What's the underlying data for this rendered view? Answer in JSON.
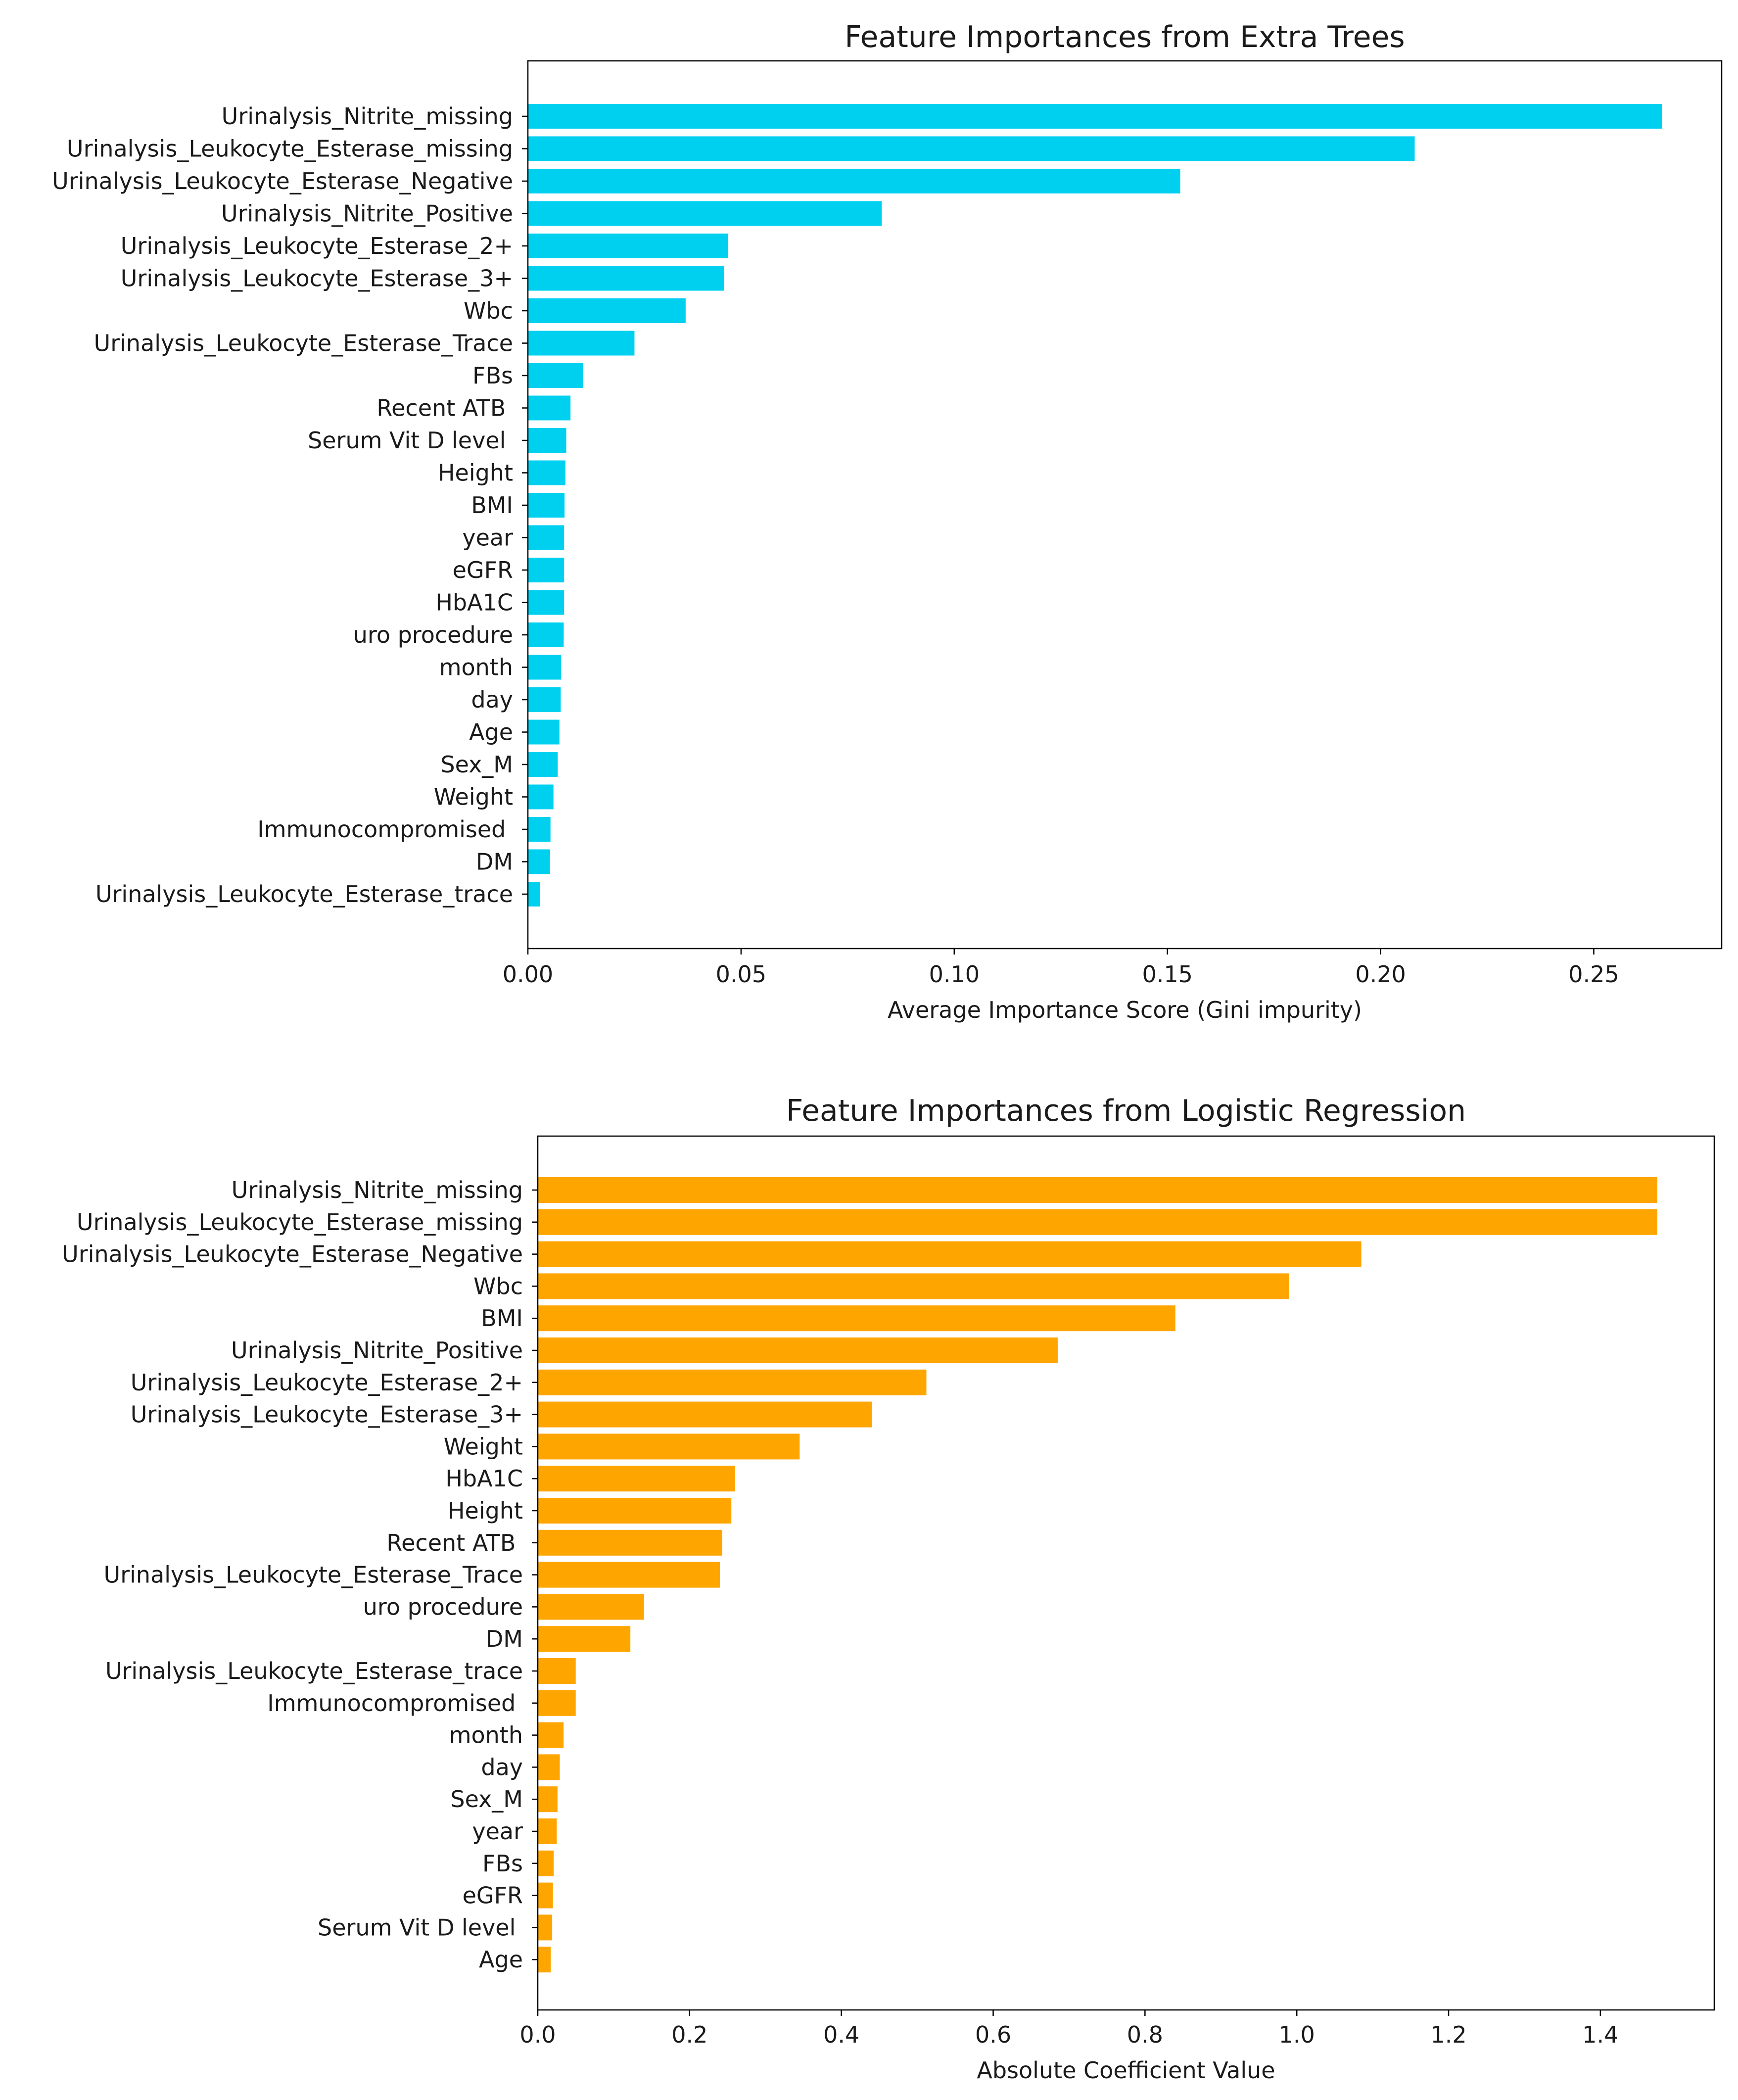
{
  "chart_data": [
    {
      "type": "bar",
      "orientation": "horizontal",
      "title": "Feature Importances from Extra Trees",
      "xlabel": "Average Importance Score (Gini impurity)",
      "ylabel": "",
      "xlim": [
        0,
        0.28
      ],
      "xticks": [
        0,
        0.05,
        0.1,
        0.15,
        0.2,
        0.25
      ],
      "xtick_labels": [
        "0.00",
        "0.05",
        "0.10",
        "0.15",
        "0.20",
        "0.25"
      ],
      "color": "#00D0F0",
      "grid": false,
      "categories": [
        "Urinalysis_Nitrite_missing",
        "Urinalysis_Leukocyte_Esterase_missing",
        "Urinalysis_Leukocyte_Esterase_Negative",
        "Urinalysis_Nitrite_Positive",
        "Urinalysis_Leukocyte_Esterase_2+",
        "Urinalysis_Leukocyte_Esterase_3+",
        "Wbc",
        "Urinalysis_Leukocyte_Esterase_Trace",
        "FBs",
        "Recent ATB ",
        "Serum Vit D level ",
        "Height",
        "BMI",
        "year",
        "eGFR",
        "HbA1C",
        "uro procedure",
        "month",
        "day",
        "Age",
        "Sex_M",
        "Weight",
        "Immunocompromised ",
        "DM",
        "Urinalysis_Leukocyte_Esterase_trace"
      ],
      "values": [
        0.266,
        0.208,
        0.153,
        0.083,
        0.047,
        0.046,
        0.037,
        0.025,
        0.013,
        0.01,
        0.009,
        0.0088,
        0.0086,
        0.0085,
        0.0085,
        0.0085,
        0.0084,
        0.0078,
        0.0077,
        0.0074,
        0.007,
        0.006,
        0.0053,
        0.0052,
        0.0028
      ]
    },
    {
      "type": "bar",
      "orientation": "horizontal",
      "title": "Feature Importances from Logistic Regression",
      "xlabel": "Absolute Coefficient Value",
      "ylabel": "",
      "xlim": [
        0,
        1.55
      ],
      "xticks": [
        0,
        0.2,
        0.4,
        0.6,
        0.8,
        1.0,
        1.2,
        1.4
      ],
      "xtick_labels": [
        "0.0",
        "0.2",
        "0.4",
        "0.6",
        "0.8",
        "1.0",
        "1.2",
        "1.4"
      ],
      "color": "#FFA500",
      "grid": false,
      "categories": [
        "Urinalysis_Nitrite_missing",
        "Urinalysis_Leukocyte_Esterase_missing",
        "Urinalysis_Leukocyte_Esterase_Negative",
        "Wbc",
        "BMI",
        "Urinalysis_Nitrite_Positive",
        "Urinalysis_Leukocyte_Esterase_2+",
        "Urinalysis_Leukocyte_Esterase_3+",
        "Weight",
        "HbA1C",
        "Height",
        "Recent ATB ",
        "Urinalysis_Leukocyte_Esterase_Trace",
        "uro procedure",
        "DM",
        "Urinalysis_Leukocyte_Esterase_trace",
        "Immunocompromised ",
        "month",
        "day",
        "Sex_M",
        "year",
        "FBs",
        "eGFR",
        "Serum Vit D level ",
        "Age"
      ],
      "values": [
        1.475,
        1.475,
        1.085,
        0.99,
        0.84,
        0.685,
        0.512,
        0.44,
        0.345,
        0.26,
        0.255,
        0.243,
        0.24,
        0.14,
        0.122,
        0.05,
        0.05,
        0.034,
        0.029,
        0.026,
        0.025,
        0.021,
        0.02,
        0.019,
        0.017
      ]
    }
  ]
}
